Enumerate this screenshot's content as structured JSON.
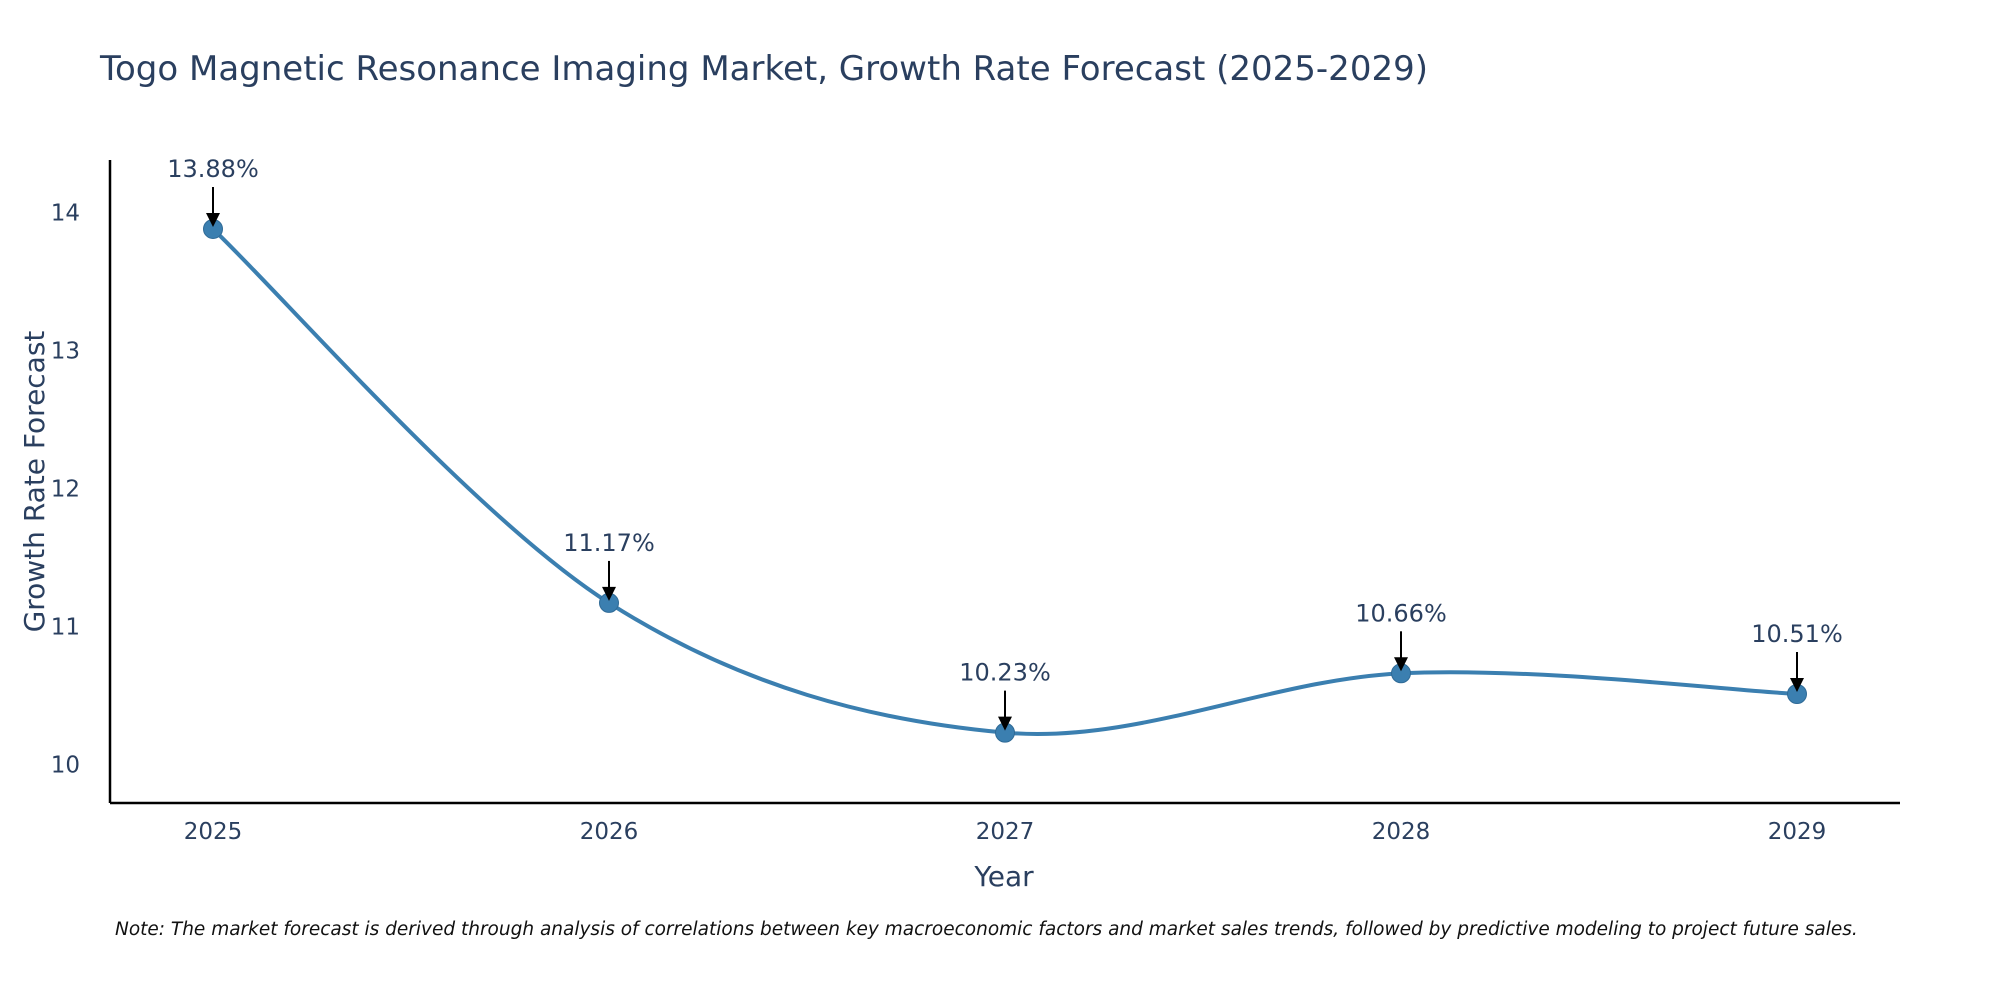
{
  "chart_data": {
    "type": "line",
    "title": "Togo Magnetic Resonance Imaging Market, Growth Rate Forecast (2025-2029)",
    "xlabel": "Year",
    "ylabel": "Growth Rate Forecast",
    "categories": [
      "2025",
      "2026",
      "2027",
      "2028",
      "2029"
    ],
    "series": [
      {
        "name": "Growth Rate Forecast",
        "values": [
          13.88,
          11.17,
          10.23,
          10.66,
          10.51
        ],
        "labels": [
          "13.88%",
          "11.17%",
          "10.23%",
          "10.66%",
          "10.51%"
        ]
      }
    ],
    "ylim": [
      9.72,
      14.38
    ],
    "yticks": [
      10,
      11,
      12,
      13,
      14
    ],
    "ytick_labels": [
      "10",
      "11",
      "12",
      "13",
      "14"
    ],
    "grid": false,
    "line_color": "#3b7fb0",
    "note": "Note: The market forecast is derived through analysis of correlations between key macroeconomic factors and market sales trends, followed by predictive modeling to project future sales."
  }
}
